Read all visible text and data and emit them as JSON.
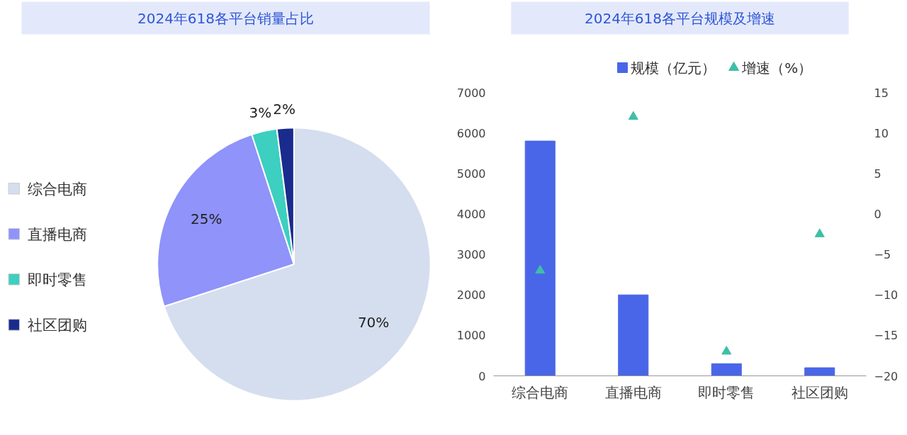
{
  "chart_data": [
    {
      "type": "pie",
      "title": "2024年618各平台销量占比",
      "categories": [
        "综合电商",
        "直播电商",
        "即时零售",
        "社区团购"
      ],
      "values": [
        70,
        25,
        3,
        2
      ],
      "colors": [
        "#d5deee",
        "#8f93fa",
        "#3dcfc0",
        "#1a2b8e"
      ],
      "value_labels": [
        "70%",
        "25%",
        "3%",
        "2%"
      ],
      "legend": "left"
    },
    {
      "type": "bar",
      "title": "2024年618各平台规模及增速",
      "categories": [
        "综合电商",
        "直播电商",
        "即时零售",
        "社区团购"
      ],
      "series": [
        {
          "name": "规模（亿元）",
          "color": "#4a66e8",
          "values": [
            5800,
            2000,
            300,
            200
          ]
        },
        {
          "name": "增速（%）",
          "type": "scatter",
          "axis": "y2",
          "color": "#3dbfa8",
          "values": [
            -7,
            12,
            -17,
            -2.5
          ]
        }
      ],
      "ylim": [
        0,
        7000
      ],
      "yticks": [
        0,
        1000,
        2000,
        3000,
        4000,
        5000,
        6000,
        7000
      ],
      "y2lim": [
        -20,
        15
      ],
      "y2ticks": [
        -20,
        -15,
        -10,
        -5,
        0,
        5,
        10,
        15
      ],
      "marker": "triangle",
      "legend": "top",
      "grid": false
    }
  ]
}
